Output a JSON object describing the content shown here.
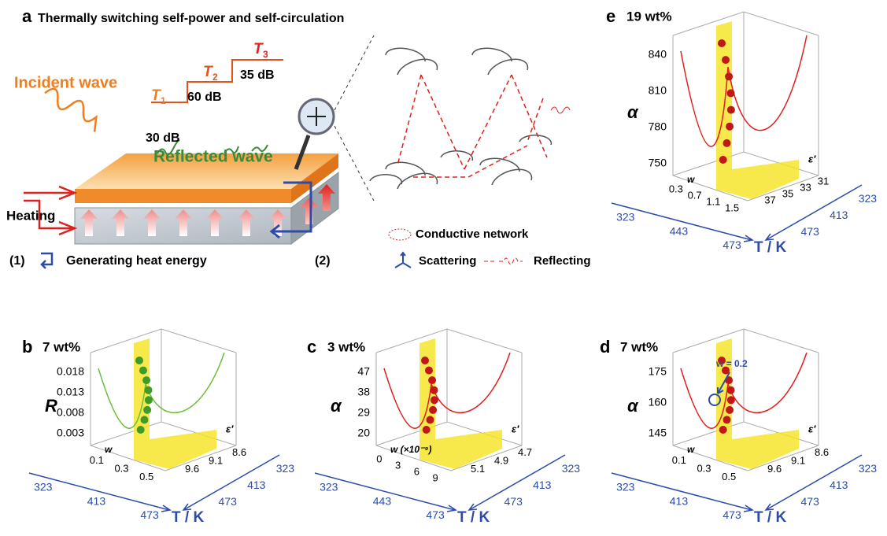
{
  "panel_a": {
    "label": "a",
    "title": "Thermally switching self-power and self-circulation",
    "incident": "Incident wave",
    "reflected": "Reflected wave",
    "heating": "Heating",
    "steps": [
      {
        "symbol": "T",
        "sub": "1",
        "level": "30 dB"
      },
      {
        "symbol": "T",
        "sub": "2",
        "level": "60 dB"
      },
      {
        "symbol": "T",
        "sub": "3",
        "level": "35 dB"
      }
    ],
    "legend1": {
      "num": "(1)",
      "text": "Generating heat energy"
    },
    "legend2": {
      "num": "(2)",
      "network": "Conductive network",
      "scattering": "Scattering",
      "reflecting": "Reflecting"
    }
  },
  "panels": [
    {
      "label": "b",
      "title": "7 wt%",
      "zlabel": "R",
      "zticks": [
        "0.018",
        "0.013",
        "0.008",
        "0.003"
      ],
      "wlabel": "w",
      "wticks": [
        "0.1",
        "0.3",
        "0.5"
      ],
      "elabel": "ε′",
      "eticks": [
        "8.6",
        "9.1",
        "9.6"
      ],
      "tlabel": "T / K",
      "tleft": [
        "323",
        "413",
        "473"
      ],
      "tright": [
        "323",
        "413",
        "473"
      ]
    },
    {
      "label": "c",
      "title": "3 wt%",
      "zlabel": "α",
      "zticks": [
        "47",
        "38",
        "29",
        "20"
      ],
      "wlabel": "w (×10⁻⁹)",
      "wticks": [
        "0",
        "3",
        "6",
        "9"
      ],
      "elabel": "ε′",
      "eticks": [
        "4.7",
        "4.9",
        "5.1"
      ],
      "tlabel": "T / K",
      "tleft": [
        "323",
        "443",
        "473"
      ],
      "tright": [
        "323",
        "413",
        "473"
      ]
    },
    {
      "label": "d",
      "title": "7 wt%",
      "zlabel": "α",
      "zticks": [
        "175",
        "160",
        "145"
      ],
      "wlabel": "w",
      "wticks": [
        "0.1",
        "0.3",
        "0.5"
      ],
      "elabel": "ε′",
      "eticks": [
        "8.6",
        "9.1",
        "9.6"
      ],
      "tlabel": "T / K",
      "tleft": [
        "323",
        "413",
        "473"
      ],
      "tright": [
        "323",
        "413",
        "473"
      ],
      "annotation": "w = 0.2"
    },
    {
      "label": "e",
      "title": "19 wt%",
      "zlabel": "α",
      "zticks": [
        "840",
        "810",
        "780",
        "750"
      ],
      "wlabel": "w",
      "wticks": [
        "0.3",
        "0.7",
        "1.1",
        "1.5"
      ],
      "elabel": "ε′",
      "eticks": [
        "31",
        "33",
        "35",
        "37"
      ],
      "tlabel": "T / K",
      "tleft": [
        "323",
        "443",
        "473"
      ],
      "tright": [
        "323",
        "413",
        "473"
      ]
    }
  ]
}
